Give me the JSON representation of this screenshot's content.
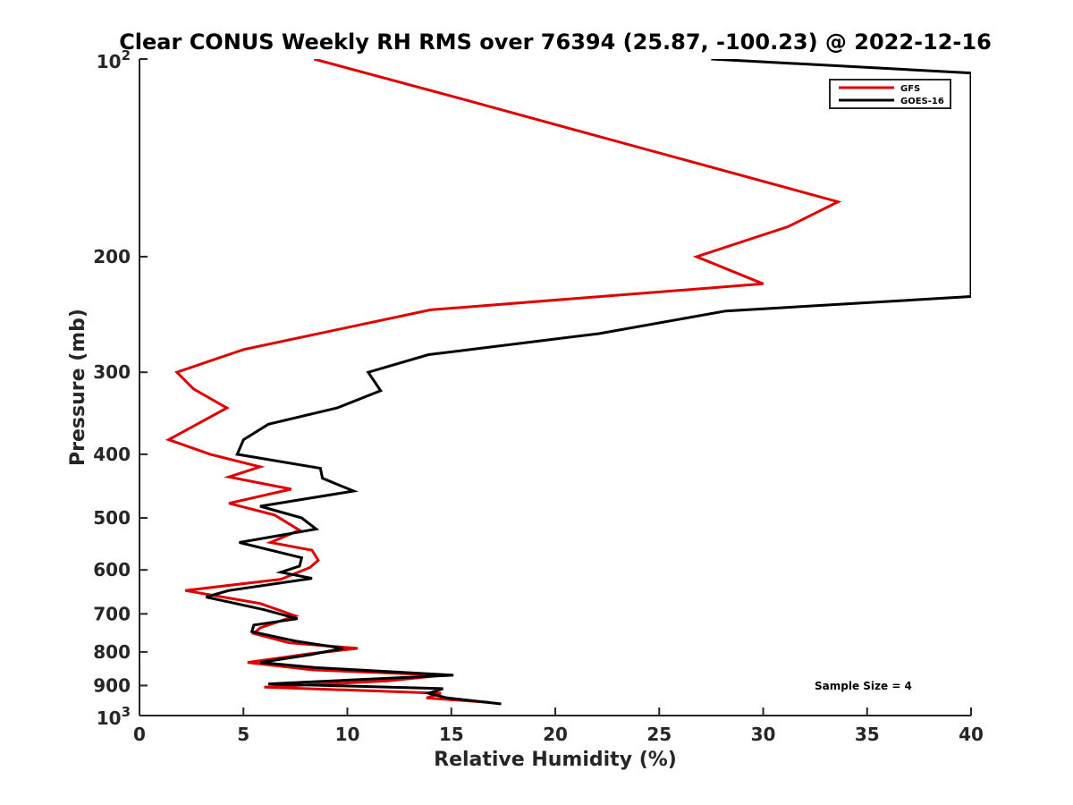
{
  "chart_data": {
    "type": "line",
    "title": "Clear CONUS Weekly RH RMS over 76394 (25.87, -100.23) @ 2022-12-16",
    "xlabel": "Relative Humidity (%)",
    "ylabel": "Pressure (mb)",
    "xlim": [
      0,
      40
    ],
    "ylim": [
      100,
      1000
    ],
    "y_scale": "log",
    "y_reversed": true,
    "x_ticks": [
      "0",
      "5",
      "10",
      "15",
      "20",
      "25",
      "30",
      "35",
      "40"
    ],
    "y_ticks": [
      {
        "value": 100,
        "base": "10",
        "exp": "2"
      },
      {
        "value": 200,
        "label": "200"
      },
      {
        "value": 300,
        "label": "300"
      },
      {
        "value": 400,
        "label": "400"
      },
      {
        "value": 500,
        "label": "500"
      },
      {
        "value": 600,
        "label": "600"
      },
      {
        "value": 700,
        "label": "700"
      },
      {
        "value": 800,
        "label": "800"
      },
      {
        "value": 900,
        "label": "900"
      },
      {
        "value": 1000,
        "base": "10",
        "exp": "3"
      }
    ],
    "grid": false,
    "legend_position": "top-right",
    "annotation": "Sample Size = 4",
    "series": [
      {
        "name": "GFS",
        "color": "#e00000",
        "points": [
          [
            8.4,
            100
          ],
          [
            15.5,
            115
          ],
          [
            33.6,
            165
          ],
          [
            31.2,
            180
          ],
          [
            26.8,
            200
          ],
          [
            30.0,
            220
          ],
          [
            14.0,
            241
          ],
          [
            5.0,
            277
          ],
          [
            1.8,
            300
          ],
          [
            2.6,
            318
          ],
          [
            4.2,
            340
          ],
          [
            1.4,
            380
          ],
          [
            3.4,
            400
          ],
          [
            5.8,
            418
          ],
          [
            4.3,
            433
          ],
          [
            7.3,
            452
          ],
          [
            4.3,
            475
          ],
          [
            6.5,
            495
          ],
          [
            7.7,
            522
          ],
          [
            6.3,
            545
          ],
          [
            8.3,
            560
          ],
          [
            8.6,
            580
          ],
          [
            8.2,
            595
          ],
          [
            6.8,
            620
          ],
          [
            2.2,
            645
          ],
          [
            5.8,
            675
          ],
          [
            7.5,
            705
          ],
          [
            5.8,
            735
          ],
          [
            5.5,
            750
          ],
          [
            7.2,
            775
          ],
          [
            10.5,
            790
          ],
          [
            8.2,
            805
          ],
          [
            5.2,
            830
          ],
          [
            8.3,
            852
          ],
          [
            14.6,
            868
          ],
          [
            12.0,
            885
          ],
          [
            6.0,
            905
          ],
          [
            14.5,
            925
          ],
          [
            13.8,
            940
          ],
          [
            16.8,
            955
          ]
        ]
      },
      {
        "name": "GOES-16",
        "color": "#000000",
        "points": [
          [
            27.5,
            100
          ],
          [
            40.0,
            105
          ],
          [
            40.0,
            230
          ],
          [
            28.2,
            242
          ],
          [
            22.1,
            262
          ],
          [
            13.9,
            282
          ],
          [
            11.0,
            300
          ],
          [
            11.6,
            320
          ],
          [
            9.5,
            340
          ],
          [
            6.2,
            360
          ],
          [
            5.0,
            380
          ],
          [
            4.7,
            400
          ],
          [
            8.7,
            420
          ],
          [
            8.8,
            435
          ],
          [
            10.3,
            455
          ],
          [
            5.8,
            480
          ],
          [
            7.8,
            500
          ],
          [
            8.5,
            520
          ],
          [
            4.8,
            545
          ],
          [
            7.8,
            575
          ],
          [
            7.7,
            592
          ],
          [
            6.8,
            605
          ],
          [
            8.3,
            618
          ],
          [
            4.3,
            645
          ],
          [
            3.2,
            660
          ],
          [
            6.0,
            690
          ],
          [
            7.6,
            712
          ],
          [
            5.5,
            728
          ],
          [
            5.4,
            745
          ],
          [
            7.5,
            770
          ],
          [
            9.8,
            790
          ],
          [
            8.2,
            808
          ],
          [
            5.8,
            830
          ],
          [
            8.4,
            845
          ],
          [
            15.1,
            868
          ],
          [
            6.2,
            895
          ],
          [
            14.6,
            910
          ],
          [
            13.9,
            925
          ],
          [
            14.8,
            940
          ],
          [
            17.4,
            960
          ]
        ]
      }
    ]
  }
}
